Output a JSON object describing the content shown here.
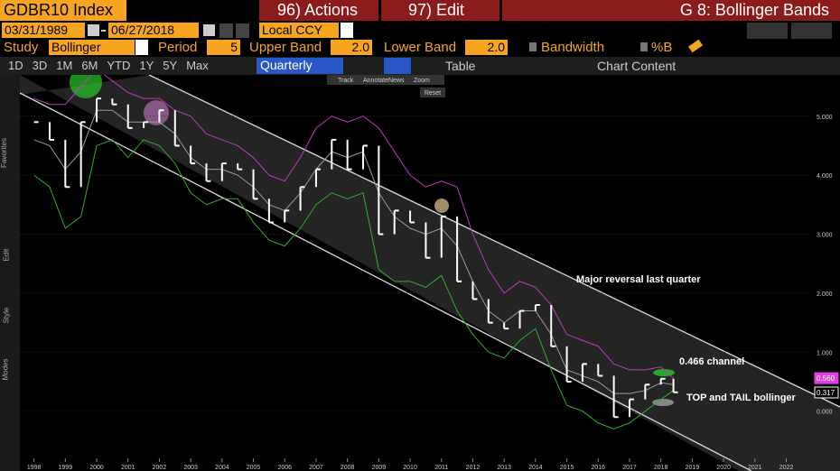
{
  "header": {
    "ticker": "GDBR10 Index",
    "actions": "96) Actions",
    "edit": "97) Edit",
    "title": "G 8: Bollinger Bands"
  },
  "dates": {
    "start": "03/31/1989",
    "end": "06/27/2018",
    "currency": "Local CCY"
  },
  "study": {
    "label": "Study",
    "name": "Bollinger",
    "period_label": "Period",
    "period": "5",
    "upper_label": "Upper Band",
    "upper": "2.0",
    "lower_label": "Lower Band",
    "lower": "2.0",
    "bandwidth": "Bandwidth",
    "pctb": "%B"
  },
  "tabs": [
    "1D",
    "3D",
    "1M",
    "6M",
    "YTD",
    "1Y",
    "5Y",
    "Max"
  ],
  "frequency": "Quarterly",
  "table": "Table",
  "chart_content": "Chart Content",
  "tools": [
    "Track",
    "Annotate",
    "News",
    "Zoom"
  ],
  "reset": "Reset",
  "sidebar": [
    "Favorites",
    "Edit",
    "Style",
    "Modes"
  ],
  "chart_data": {
    "type": "line",
    "annotations": [
      "Major reversal last quarter",
      "0.466 channel",
      "TOP and TAIL bollinger"
    ],
    "price_labels": [
      {
        "value": 0.56,
        "label": "0.560",
        "color": "#e040e0"
      },
      {
        "value": 0.317,
        "label": "0.317",
        "color": "#ffffff"
      }
    ],
    "x": [
      1998,
      1998.5,
      1999,
      1999.5,
      2000,
      2000.5,
      2001,
      2001.5,
      2002,
      2002.5,
      2003,
      2003.5,
      2004,
      2004.5,
      2005,
      2005.5,
      2006,
      2006.5,
      2007,
      2007.5,
      2008,
      2008.5,
      2009,
      2009.5,
      2010,
      2010.5,
      2011,
      2011.5,
      2012,
      2012.5,
      2013,
      2013.5,
      2014,
      2014.5,
      2015,
      2015.5,
      2016,
      2016.5,
      2017,
      2017.5,
      2018,
      2018.4
    ],
    "series": [
      {
        "name": "Close",
        "color": "#ffffff",
        "values": [
          4.9,
          4.6,
          3.8,
          4.9,
          5.3,
          5.2,
          4.8,
          4.9,
          5.1,
          4.5,
          4.2,
          3.9,
          4.2,
          4.1,
          3.6,
          3.2,
          3.4,
          3.8,
          4.1,
          4.6,
          4.1,
          4.5,
          3.0,
          3.4,
          3.2,
          2.6,
          3.3,
          2.2,
          1.9,
          1.5,
          1.4,
          1.7,
          1.8,
          1.1,
          0.5,
          0.8,
          0.6,
          -0.1,
          0.2,
          0.45,
          0.55,
          0.32
        ]
      },
      {
        "name": "Upper Band",
        "color": "#c03cc0",
        "values": [
          5.3,
          5.2,
          5.2,
          5.5,
          5.8,
          5.6,
          5.4,
          5.3,
          5.3,
          5.1,
          5.0,
          4.7,
          4.6,
          4.5,
          4.3,
          4.0,
          3.9,
          4.3,
          4.8,
          5.0,
          4.9,
          5.0,
          4.8,
          4.4,
          4.0,
          3.8,
          3.9,
          3.8,
          3.0,
          2.4,
          2.0,
          2.2,
          2.1,
          1.8,
          1.3,
          1.2,
          1.1,
          0.8,
          0.7,
          0.7,
          0.75,
          0.56
        ]
      },
      {
        "name": "Middle Band",
        "color": "#9a9a9a",
        "values": [
          4.6,
          4.5,
          4.1,
          4.4,
          5.1,
          5.1,
          4.9,
          4.9,
          4.9,
          4.7,
          4.3,
          4.1,
          4.1,
          4.0,
          3.8,
          3.5,
          3.4,
          3.7,
          4.1,
          4.4,
          4.3,
          4.4,
          3.7,
          3.3,
          3.1,
          3.0,
          3.1,
          2.8,
          2.2,
          1.7,
          1.5,
          1.7,
          1.7,
          1.3,
          0.7,
          0.6,
          0.5,
          0.3,
          0.3,
          0.35,
          0.48,
          0.45
        ]
      },
      {
        "name": "Lower Band",
        "color": "#2fae2f",
        "values": [
          4.0,
          3.8,
          3.1,
          3.3,
          4.5,
          4.6,
          4.3,
          4.6,
          4.5,
          4.2,
          3.7,
          3.5,
          3.6,
          3.6,
          3.2,
          2.9,
          2.8,
          3.1,
          3.5,
          3.7,
          3.6,
          3.7,
          2.4,
          2.2,
          2.2,
          2.1,
          2.3,
          1.7,
          1.3,
          1.0,
          0.9,
          1.2,
          1.4,
          0.7,
          0.1,
          0.0,
          -0.2,
          -0.3,
          -0.2,
          0.0,
          0.2,
          0.35
        ]
      }
    ],
    "xlim": [
      1997.55,
      2022.85
    ],
    "xticks": [
      1998,
      1999,
      2000,
      2001,
      2002,
      2003,
      2004,
      2005,
      2006,
      2007,
      2008,
      2009,
      2010,
      2011,
      2012,
      2013,
      2014,
      2015,
      2016,
      2017,
      2018,
      2019,
      2020,
      2021,
      2022
    ],
    "ylim": [
      -0.8,
      5.7
    ],
    "yticks": [
      {
        "value": 0,
        "label": "0.000"
      },
      {
        "value": 1,
        "label": "1.000"
      },
      {
        "value": 2,
        "label": "2.000"
      },
      {
        "value": 3,
        "label": "3.000"
      },
      {
        "value": 4,
        "label": "4.000"
      },
      {
        "value": 5,
        "label": "5.000"
      }
    ]
  }
}
